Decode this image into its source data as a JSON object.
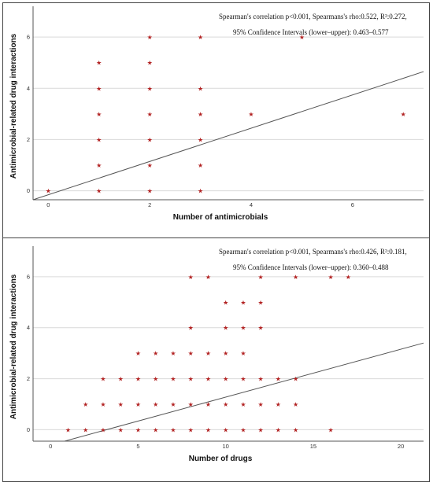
{
  "chart_data": [
    {
      "type": "scatter",
      "xlabel": "Number of antimicrobials",
      "ylabel": "Antimicrobial-related drug interactions",
      "xlim": [
        -0.3,
        7.4
      ],
      "ylim": [
        -0.35,
        7.2
      ],
      "xticks": [
        "0",
        "2",
        "4",
        "6"
      ],
      "yticks": [
        "0",
        "2",
        "4",
        "6"
      ],
      "grid": "horizontal",
      "annotation_line1": "Spearman's correlation p<0.001, Spearmans's rho:0.522, R²:0.272,",
      "annotation_line2": "95% Confidence Intervals (lower–upper): 0.463–0.577",
      "points": [
        {
          "x": 0,
          "y": 0
        },
        {
          "x": 1,
          "y": 0
        },
        {
          "x": 1,
          "y": 1
        },
        {
          "x": 1,
          "y": 2
        },
        {
          "x": 1,
          "y": 3
        },
        {
          "x": 1,
          "y": 4
        },
        {
          "x": 1,
          "y": 5
        },
        {
          "x": 2,
          "y": 0
        },
        {
          "x": 2,
          "y": 1
        },
        {
          "x": 2,
          "y": 2
        },
        {
          "x": 2,
          "y": 3
        },
        {
          "x": 2,
          "y": 4
        },
        {
          "x": 2,
          "y": 5
        },
        {
          "x": 2,
          "y": 6
        },
        {
          "x": 3,
          "y": 0
        },
        {
          "x": 3,
          "y": 1
        },
        {
          "x": 3,
          "y": 2
        },
        {
          "x": 3,
          "y": 3
        },
        {
          "x": 3,
          "y": 4
        },
        {
          "x": 3,
          "y": 6
        },
        {
          "x": 4,
          "y": 3
        },
        {
          "x": 5,
          "y": 6
        },
        {
          "x": 7,
          "y": 3
        }
      ],
      "fit_line": {
        "x": [
          -0.3,
          7.4
        ],
        "y": [
          -0.35,
          4.65
        ]
      }
    },
    {
      "type": "scatter",
      "xlabel": "Number of drugs",
      "ylabel": "Antimicrobial-related drug interactions",
      "xlim": [
        -1,
        21.3
      ],
      "ylim": [
        -0.45,
        7.2
      ],
      "xticks": [
        "0",
        "5",
        "10",
        "15",
        "20"
      ],
      "yticks": [
        "0",
        "2",
        "4",
        "6"
      ],
      "grid": "horizontal",
      "annotation_line1": "Spearman's correlation p<0.001, Spearmans's rho:0.426, R²:0.181,",
      "annotation_line2": "95% Confidence Intervals (lower–upper): 0.360–0.488",
      "points": [
        {
          "x": 1,
          "y": 0
        },
        {
          "x": 2,
          "y": 0
        },
        {
          "x": 2,
          "y": 1
        },
        {
          "x": 3,
          "y": 0
        },
        {
          "x": 3,
          "y": 1
        },
        {
          "x": 3,
          "y": 2
        },
        {
          "x": 4,
          "y": 0
        },
        {
          "x": 4,
          "y": 1
        },
        {
          "x": 4,
          "y": 2
        },
        {
          "x": 5,
          "y": 0
        },
        {
          "x": 5,
          "y": 1
        },
        {
          "x": 5,
          "y": 2
        },
        {
          "x": 5,
          "y": 3
        },
        {
          "x": 6,
          "y": 0
        },
        {
          "x": 6,
          "y": 1
        },
        {
          "x": 6,
          "y": 2
        },
        {
          "x": 6,
          "y": 3
        },
        {
          "x": 7,
          "y": 0
        },
        {
          "x": 7,
          "y": 1
        },
        {
          "x": 7,
          "y": 2
        },
        {
          "x": 7,
          "y": 3
        },
        {
          "x": 8,
          "y": 0
        },
        {
          "x": 8,
          "y": 1
        },
        {
          "x": 8,
          "y": 2
        },
        {
          "x": 8,
          "y": 3
        },
        {
          "x": 8,
          "y": 4
        },
        {
          "x": 8,
          "y": 6
        },
        {
          "x": 9,
          "y": 0
        },
        {
          "x": 9,
          "y": 1
        },
        {
          "x": 9,
          "y": 2
        },
        {
          "x": 9,
          "y": 3
        },
        {
          "x": 9,
          "y": 6
        },
        {
          "x": 10,
          "y": 0
        },
        {
          "x": 10,
          "y": 1
        },
        {
          "x": 10,
          "y": 2
        },
        {
          "x": 10,
          "y": 3
        },
        {
          "x": 10,
          "y": 4
        },
        {
          "x": 10,
          "y": 5
        },
        {
          "x": 11,
          "y": 0
        },
        {
          "x": 11,
          "y": 1
        },
        {
          "x": 11,
          "y": 2
        },
        {
          "x": 11,
          "y": 3
        },
        {
          "x": 11,
          "y": 4
        },
        {
          "x": 11,
          "y": 5
        },
        {
          "x": 12,
          "y": 0
        },
        {
          "x": 12,
          "y": 1
        },
        {
          "x": 12,
          "y": 2
        },
        {
          "x": 12,
          "y": 4
        },
        {
          "x": 12,
          "y": 5
        },
        {
          "x": 12,
          "y": 6
        },
        {
          "x": 13,
          "y": 0
        },
        {
          "x": 13,
          "y": 1
        },
        {
          "x": 13,
          "y": 2
        },
        {
          "x": 14,
          "y": 0
        },
        {
          "x": 14,
          "y": 1
        },
        {
          "x": 14,
          "y": 2
        },
        {
          "x": 14,
          "y": 6
        },
        {
          "x": 16,
          "y": 0
        },
        {
          "x": 16,
          "y": 6
        },
        {
          "x": 17,
          "y": 6
        }
      ],
      "fit_line": {
        "x": [
          0.8,
          21.3
        ],
        "y": [
          -0.45,
          3.4
        ]
      }
    }
  ]
}
